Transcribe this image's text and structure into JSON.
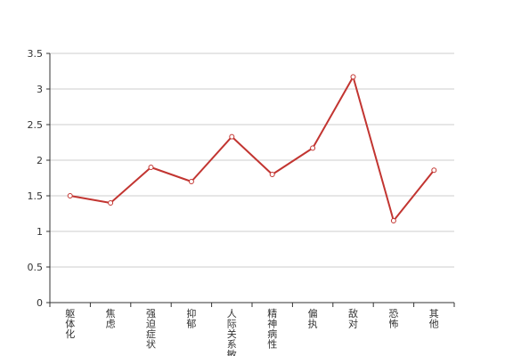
{
  "chart_data": {
    "type": "line",
    "categories": [
      "躯体化",
      "焦虑",
      "强迫症状",
      "抑郁",
      "人际关系敏感",
      "精神病性",
      "偏执",
      "敌对",
      "恐怖",
      "其他"
    ],
    "series": [
      {
        "values": [
          1.5,
          1.4,
          1.9,
          1.7,
          2.33,
          1.8,
          2.17,
          3.17,
          1.15,
          1.86
        ]
      }
    ],
    "yticks": [
      "0",
      "0.5",
      "1",
      "1.5",
      "2",
      "2.5",
      "3",
      "3.5"
    ],
    "ylim": [
      0,
      3.5
    ],
    "grid": true,
    "line_color": "#c23531",
    "title": "",
    "xlabel": "",
    "ylabel": ""
  }
}
